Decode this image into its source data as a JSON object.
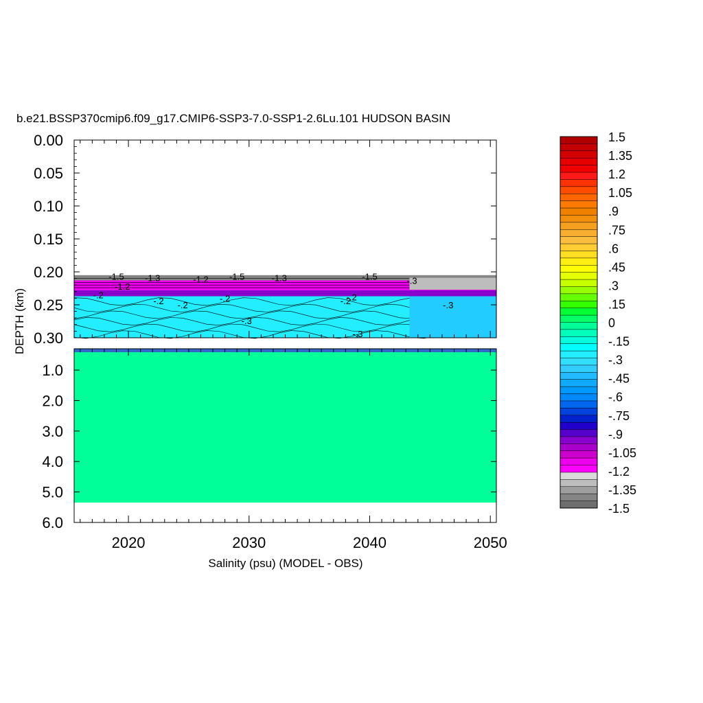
{
  "chart_data": {
    "type": "heatmap",
    "title": "b.e21.BSSP370cmip6.f09_g17.CMIP6-SSP3-7.0-SSP1-2.6Lu.101 HUDSON BASIN",
    "xlabel": "Salinity (psu) (MODEL - OBS)",
    "ylabel": "DEPTH (km)",
    "xlim": [
      2015.5,
      2050.5
    ],
    "x_ticks": [
      "2020",
      "2030",
      "2040",
      "2050"
    ],
    "upper_panel": {
      "ylim": [
        0.0,
        0.3
      ],
      "y_ticks": [
        "0.00",
        "0.05",
        "0.10",
        "0.15",
        "0.20",
        "0.25",
        "0.30"
      ]
    },
    "lower_panel": {
      "ylim": [
        0.3,
        6.0
      ],
      "y_ticks": [
        "1.0",
        "2.0",
        "3.0",
        "4.0",
        "5.0",
        "6.0"
      ]
    },
    "layers": [
      {
        "name": "surface negative layer",
        "depth_top": 0.205,
        "depth_bottom": 0.213,
        "value": -1.4
      },
      {
        "name": "magenta band",
        "depth_top": 0.213,
        "depth_bottom": 0.228,
        "value": -1.15
      },
      {
        "name": "dark thin band",
        "depth_top": 0.228,
        "depth_bottom": 0.237,
        "value": -0.95
      },
      {
        "name": "cyan layer",
        "depth_top": 0.237,
        "depth_bottom": 0.3,
        "value": -0.25
      },
      {
        "name": "deep layer",
        "depth_top": 0.3,
        "depth_bottom": 5.35,
        "value": 0.0
      }
    ],
    "contour_labels": [
      {
        "text": "-1.5",
        "x": 2019.0,
        "depth": 0.207
      },
      {
        "text": "-1.3",
        "x": 2022.0,
        "depth": 0.209
      },
      {
        "text": "-1.2",
        "x": 2026.0,
        "depth": 0.211
      },
      {
        "text": "-1.5",
        "x": 2029.0,
        "depth": 0.207
      },
      {
        "text": "-1.3",
        "x": 2032.5,
        "depth": 0.209
      },
      {
        "text": "-1.5",
        "x": 2040.0,
        "depth": 0.207
      },
      {
        "text": "-.3",
        "x": 2043.5,
        "depth": 0.213
      },
      {
        "text": "-1.2",
        "x": 2019.5,
        "depth": 0.222
      },
      {
        "text": "-.2",
        "x": 2017.5,
        "depth": 0.235
      },
      {
        "text": "-.2",
        "x": 2022.5,
        "depth": 0.244
      },
      {
        "text": "-.2",
        "x": 2024.5,
        "depth": 0.25
      },
      {
        "text": "-.2",
        "x": 2028.0,
        "depth": 0.24
      },
      {
        "text": "-.3",
        "x": 2029.8,
        "depth": 0.274
      },
      {
        "text": "-.2",
        "x": 2038.5,
        "depth": 0.238
      },
      {
        "text": "-.2",
        "x": 2038.0,
        "depth": 0.244
      },
      {
        "text": "-.3",
        "x": 2046.5,
        "depth": 0.25
      },
      {
        "text": "-.3",
        "x": 2039.0,
        "depth": 0.294
      }
    ],
    "colorbar": {
      "labels": [
        "1.5",
        "1.35",
        "1.2",
        "1.05",
        ".9",
        ".75",
        ".6",
        ".45",
        ".3",
        ".15",
        "0",
        "-.15",
        "-.3",
        "-.45",
        "-.6",
        "-.75",
        "-.9",
        "-1.05",
        "-1.2",
        "-1.35",
        "-1.5"
      ],
      "colors": [
        "#b00000",
        "#c20000",
        "#d40000",
        "#e60000",
        "#f20000",
        "#ff1a1a",
        "#ff3300",
        "#ff4d00",
        "#ff6600",
        "#ff7a00",
        "#f08000",
        "#f2900e",
        "#f5a020",
        "#f8ae30",
        "#fbbd40",
        "#ffcc33",
        "#ffdd22",
        "#ffee11",
        "#ffff00",
        "#e6ff00",
        "#c8ff00",
        "#99ff00",
        "#66ff00",
        "#33ff00",
        "#00ff33",
        "#00ff66",
        "#00ff99",
        "#00ffbb",
        "#00ffdd",
        "#00ffff",
        "#22eeff",
        "#33ddff",
        "#33ccff",
        "#22bbff",
        "#11aaff",
        "#0099ff",
        "#0088ff",
        "#0066ee",
        "#0044dd",
        "#0022cc",
        "#2200cc",
        "#5500cc",
        "#8800cc",
        "#aa00cc",
        "#cc00cc",
        "#ee00ee",
        "#ff00ff",
        "#d9d9d9",
        "#bdbdbd",
        "#9e9e9e",
        "#858585",
        "#6e6e6e"
      ]
    }
  }
}
